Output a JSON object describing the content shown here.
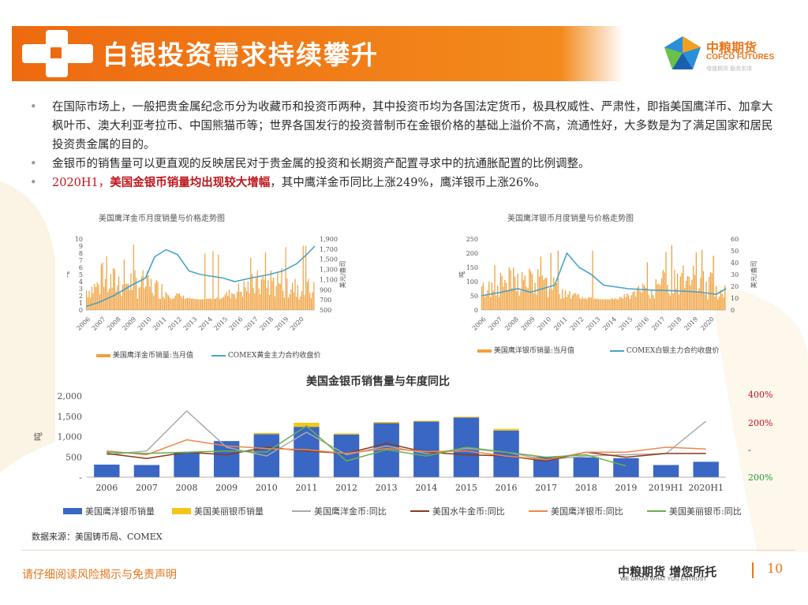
{
  "header": {
    "title": "白银投资需求持续攀升",
    "logo_text": "中粮期货",
    "logo_sub": "COFCO FUTURES",
    "logo_tag": "增值期货 服务实体"
  },
  "bullets": [
    {
      "text": "在国际市场上，一般把贵金属纪念币分为收藏币和投资币两种，其中投资币均为各国法定货币，极具权威性、严肃性，即指美国鹰洋币、加拿大枫叶币、澳大利亚考拉币、中国熊猫币等；世界各国发行的投资普制币在金银价格的基础上溢价不高，流通性好，大多数是为了满足国家和居民投资贵金属的目的。"
    },
    {
      "text": "金银币的销售量可以更直观的反映居民对于贵金属的投资和长期资产配置寻求中的抗通胀配置的比例调整。"
    },
    {
      "prefix": "2020H1，",
      "highlight": "美国金银币销量均出现较大增幅",
      "rest": "，其中鹰洋金币同比上涨249%，鹰洋银币上涨26%。"
    }
  ],
  "colors": {
    "orange": "#ee6a10",
    "bar_orange": "#f0a03c",
    "line_blue": "#4aa3c8",
    "bar_blue": "#3a66c4",
    "yellow": "#f5c518",
    "gray": "#aaaaaa",
    "brown": "#8b3a1a",
    "light_orange": "#f0884a",
    "green": "#6ab04c",
    "red": "#c0141a"
  },
  "chart_left": {
    "title": "美国鹰洋金币月度销量与价格走势图",
    "y_left_label": "吨",
    "y_right_label": "美元/盎司",
    "y_left_ticks": [
      "10",
      "9",
      "8",
      "7",
      "6",
      "5",
      "4",
      "3",
      "2",
      "1",
      "0"
    ],
    "y_right_ticks": [
      "1,900",
      "1,700",
      "1,500",
      "1,300",
      "1,100",
      "900",
      "700",
      "500"
    ],
    "x_ticks": [
      "2006",
      "2007",
      "2008",
      "2009",
      "2010",
      "2011",
      "2012",
      "2013",
      "2014",
      "2015",
      "2016",
      "2017",
      "2018",
      "2019",
      "2020"
    ],
    "legend": [
      "美国鹰洋金币销量:当月值",
      "COMEX黄金主力合约收盘价"
    ]
  },
  "chart_right": {
    "title": "美国鹰洋银币月度销量与价格走势图",
    "y_left_label": "吨",
    "y_right_label": "美元/盎司",
    "y_left_ticks": [
      "250",
      "200",
      "150",
      "100",
      "50",
      "0"
    ],
    "y_right_ticks": [
      "60",
      "50",
      "40",
      "30",
      "20",
      "10",
      "0"
    ],
    "x_ticks": [
      "2006",
      "2007",
      "2008",
      "2009",
      "2010",
      "2011",
      "2012",
      "2013",
      "2014",
      "2015",
      "2016",
      "2017",
      "2018",
      "2019",
      "2020"
    ],
    "legend": [
      "美国鹰洋银币销量:当月值",
      "COMEX白银主力合约收盘价"
    ]
  },
  "chart_data": {
    "type": "bar",
    "title": "美国金银币销售量与年度同比",
    "ylabel": "吨",
    "ylim": [
      0,
      2000
    ],
    "y_left_ticks": [
      "2,000",
      "1,500",
      "1,000",
      "500",
      "-"
    ],
    "y_right_ticks": [
      "400%",
      "200%",
      "-",
      "200%"
    ],
    "categories": [
      "2006",
      "2007",
      "2008",
      "2009",
      "2010",
      "2011",
      "2012",
      "2013",
      "2014",
      "2015",
      "2016",
      "2017",
      "2018",
      "2019",
      "2019H1",
      "2020H1"
    ],
    "series": [
      {
        "name": "美国鹰洋银币销量",
        "values": [
          310,
          300,
          600,
          890,
          1060,
          1240,
          1050,
          1330,
          1370,
          1470,
          1150,
          500,
          490,
          470,
          300,
          380
        ]
      },
      {
        "name": "美国美丽银币销量",
        "values": [
          0,
          0,
          0,
          0,
          30,
          100,
          30,
          30,
          20,
          20,
          40,
          10,
          0,
          0,
          0,
          0
        ]
      }
    ],
    "line_series": [
      {
        "name": "美国鹰洋金币:同比",
        "values": [
          -20,
          10,
          330,
          40,
          -30,
          160,
          -20,
          50,
          -10,
          30,
          0,
          -60,
          -30,
          -20,
          -10,
          249
        ]
      },
      {
        "name": "美国水牛金币:同比",
        "values": [
          -10,
          -50,
          0,
          -20,
          40,
          10,
          -10,
          70,
          0,
          -20,
          -30,
          -70,
          0,
          -40,
          -10,
          -10
        ]
      },
      {
        "name": "美国鹰洋银币:同比",
        "values": [
          10,
          -20,
          100,
          50,
          30,
          20,
          -10,
          30,
          5,
          10,
          -30,
          -60,
          0,
          0,
          40,
          26
        ]
      },
      {
        "name": "美国美丽银币:同比",
        "values": [
          0,
          -10,
          0,
          10,
          0,
          210,
          -70,
          20,
          -30,
          40,
          0,
          -40,
          -20,
          -110,
          null,
          null
        ]
      }
    ],
    "right_ylim": [
      -200,
      450
    ]
  },
  "footer": {
    "source": "数据来源：美国铸币局、COMEX",
    "disclaimer": "请仔细阅读风险揭示与免责声明",
    "slogan": "中粮期货 增您所托",
    "slogan_sub": "WE GROW WHAT YOU ENTRUST",
    "page": "10"
  }
}
